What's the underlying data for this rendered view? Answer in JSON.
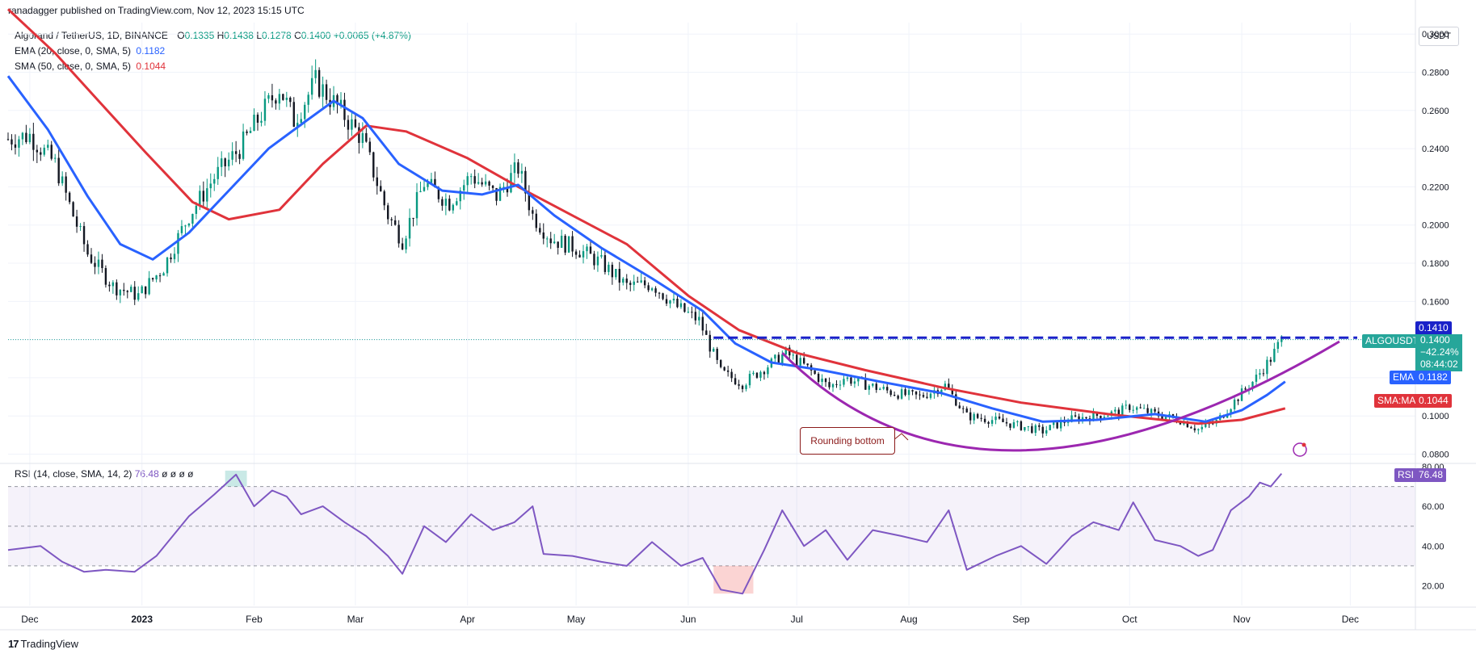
{
  "header": {
    "publisher": "ranadagger published on TradingView.com, Nov 12, 2023 15:15 UTC"
  },
  "legend": {
    "symbol": "Algorand / TetherUS, 1D, BINANCE",
    "o_label": "O",
    "o": "0.1335",
    "h_label": "H",
    "h": "0.1438",
    "l_label": "L",
    "l": "0.1278",
    "c_label": "C",
    "c": "0.1400",
    "change": "+0.0065 (+4.87%)",
    "ema_label": "EMA (20, close, 0, SMA, 5)",
    "ema_value": "0.1182",
    "sma_label": "SMA (50, close, 0, SMA, 5)",
    "sma_value": "0.1044"
  },
  "rsi_legend": {
    "label": "RSI (14, close, SMA, 14, 2)",
    "value": "76.48",
    "extras": "ø ø ø ø"
  },
  "axis": {
    "currency": "USDT"
  },
  "price_labels": {
    "resistance": "0.1410",
    "symbol": "ALGOUSDT",
    "last": "0.1400",
    "pct": "−42.24%",
    "countdown": "08:44:02",
    "ema_tag": "EMA",
    "ema_value": "0.1182",
    "sma_tag": "SMA:MA",
    "sma_value": "0.1044",
    "rsi_tag": "RSI",
    "rsi_value": "76.48"
  },
  "annotation": {
    "text": "Rounding bottom"
  },
  "footer": {
    "brand": "TradingView",
    "logo": "17"
  },
  "colors": {
    "up": "#089981",
    "down": "#131722",
    "ema": "#2962ff",
    "sma": "#e0333b",
    "rsi": "#7e57c2",
    "curve": "#9c27b0",
    "resistance": "#1a22c9",
    "annotation": "#8b1a1a"
  },
  "chart_data": [
    {
      "type": "candlestick",
      "title": "Algorand / TetherUS, 1D, BINANCE",
      "x_ticks": [
        "Dec",
        "2023",
        "Feb",
        "Mar",
        "Apr",
        "May",
        "Jun",
        "Jul",
        "Aug",
        "Sep",
        "Oct",
        "Nov",
        "Dec"
      ],
      "y_ticks": [
        "0.0800",
        "0.1000",
        "0.1200",
        "0.1400",
        "0.1600",
        "0.1800",
        "0.2000",
        "0.2200",
        "0.2400",
        "0.2600",
        "0.2800",
        "0.3000"
      ],
      "ylim": [
        0.076,
        0.306
      ],
      "close_path": [
        [
          "2022-11-25",
          0.245
        ],
        [
          "2022-12-01",
          0.247
        ],
        [
          "2022-12-08",
          0.232
        ],
        [
          "2022-12-13",
          0.205
        ],
        [
          "2022-12-17",
          0.185
        ],
        [
          "2022-12-24",
          0.168
        ],
        [
          "2022-12-31",
          0.163
        ],
        [
          "2023-01-07",
          0.178
        ],
        [
          "2023-01-14",
          0.205
        ],
        [
          "2023-01-21",
          0.225
        ],
        [
          "2023-01-28",
          0.24
        ],
        [
          "2023-02-03",
          0.258
        ],
        [
          "2023-02-08",
          0.272
        ],
        [
          "2023-02-12",
          0.255
        ],
        [
          "2023-02-18",
          0.275
        ],
        [
          "2023-02-24",
          0.262
        ],
        [
          "2023-03-03",
          0.245
        ],
        [
          "2023-03-10",
          0.205
        ],
        [
          "2023-03-14",
          0.192
        ],
        [
          "2023-03-20",
          0.222
        ],
        [
          "2023-03-27",
          0.212
        ],
        [
          "2023-04-02",
          0.226
        ],
        [
          "2023-04-09",
          0.215
        ],
        [
          "2023-04-15",
          0.23
        ],
        [
          "2023-04-19",
          0.205
        ],
        [
          "2023-04-24",
          0.193
        ],
        [
          "2023-05-01",
          0.188
        ],
        [
          "2023-05-08",
          0.18
        ],
        [
          "2023-05-15",
          0.168
        ],
        [
          "2023-05-22",
          0.169
        ],
        [
          "2023-05-29",
          0.157
        ],
        [
          "2023-06-04",
          0.15
        ],
        [
          "2023-06-10",
          0.123
        ],
        [
          "2023-06-16",
          0.117
        ],
        [
          "2023-06-22",
          0.125
        ],
        [
          "2023-06-28",
          0.133
        ],
        [
          "2023-07-04",
          0.125
        ],
        [
          "2023-07-10",
          0.115
        ],
        [
          "2023-07-14",
          0.12
        ],
        [
          "2023-07-21",
          0.116
        ],
        [
          "2023-07-28",
          0.112
        ],
        [
          "2023-08-04",
          0.11
        ],
        [
          "2023-08-11",
          0.116
        ],
        [
          "2023-08-17",
          0.1
        ],
        [
          "2023-08-24",
          0.098
        ],
        [
          "2023-08-31",
          0.095
        ],
        [
          "2023-09-07",
          0.092
        ],
        [
          "2023-09-14",
          0.098
        ],
        [
          "2023-09-21",
          0.1
        ],
        [
          "2023-09-28",
          0.102
        ],
        [
          "2023-10-01",
          0.105
        ],
        [
          "2023-10-08",
          0.101
        ],
        [
          "2023-10-15",
          0.098
        ],
        [
          "2023-10-20",
          0.093
        ],
        [
          "2023-10-25",
          0.097
        ],
        [
          "2023-11-01",
          0.112
        ],
        [
          "2023-11-05",
          0.12
        ],
        [
          "2023-11-09",
          0.13
        ],
        [
          "2023-11-12",
          0.14
        ]
      ],
      "ema20_path": [
        [
          "2022-11-25",
          0.278
        ],
        [
          "2022-12-06",
          0.25
        ],
        [
          "2022-12-17",
          0.215
        ],
        [
          "2022-12-26",
          0.19
        ],
        [
          "2023-01-04",
          0.182
        ],
        [
          "2023-01-14",
          0.196
        ],
        [
          "2023-01-25",
          0.218
        ],
        [
          "2023-02-05",
          0.24
        ],
        [
          "2023-02-15",
          0.254
        ],
        [
          "2023-02-23",
          0.265
        ],
        [
          "2023-03-03",
          0.256
        ],
        [
          "2023-03-13",
          0.232
        ],
        [
          "2023-03-25",
          0.218
        ],
        [
          "2023-04-05",
          0.216
        ],
        [
          "2023-04-15",
          0.221
        ],
        [
          "2023-04-25",
          0.205
        ],
        [
          "2023-05-08",
          0.188
        ],
        [
          "2023-05-22",
          0.172
        ],
        [
          "2023-06-05",
          0.155
        ],
        [
          "2023-06-14",
          0.138
        ],
        [
          "2023-06-24",
          0.128
        ],
        [
          "2023-07-08",
          0.124
        ],
        [
          "2023-07-24",
          0.118
        ],
        [
          "2023-08-10",
          0.112
        ],
        [
          "2023-08-24",
          0.104
        ],
        [
          "2023-09-07",
          0.097
        ],
        [
          "2023-09-22",
          0.098
        ],
        [
          "2023-10-08",
          0.101
        ],
        [
          "2023-10-22",
          0.097
        ],
        [
          "2023-11-01",
          0.103
        ],
        [
          "2023-11-08",
          0.111
        ],
        [
          "2023-11-13",
          0.118
        ]
      ],
      "sma50_path": [
        [
          "2022-11-25",
          0.313
        ],
        [
          "2022-12-08",
          0.29
        ],
        [
          "2022-12-20",
          0.265
        ],
        [
          "2023-01-02",
          0.238
        ],
        [
          "2023-01-15",
          0.212
        ],
        [
          "2023-01-25",
          0.203
        ],
        [
          "2023-02-08",
          0.208
        ],
        [
          "2023-02-20",
          0.232
        ],
        [
          "2023-03-04",
          0.252
        ],
        [
          "2023-03-15",
          0.249
        ],
        [
          "2023-04-01",
          0.235
        ],
        [
          "2023-04-15",
          0.22
        ],
        [
          "2023-04-30",
          0.205
        ],
        [
          "2023-05-15",
          0.19
        ],
        [
          "2023-06-01",
          0.163
        ],
        [
          "2023-06-15",
          0.145
        ],
        [
          "2023-07-01",
          0.133
        ],
        [
          "2023-07-20",
          0.124
        ],
        [
          "2023-08-10",
          0.115
        ],
        [
          "2023-09-01",
          0.107
        ],
        [
          "2023-09-25",
          0.101
        ],
        [
          "2023-10-20",
          0.096
        ],
        [
          "2023-11-01",
          0.098
        ],
        [
          "2023-11-13",
          0.104
        ]
      ],
      "resistance_level": 0.141,
      "annotations": [
        "Rounding bottom"
      ]
    },
    {
      "type": "line",
      "title": "RSI (14, close, SMA, 14, 2)",
      "y_ticks": [
        "20.00",
        "40.00",
        "60.00",
        "80.00"
      ],
      "ylim": [
        10,
        80
      ],
      "bands": [
        30,
        50,
        70
      ],
      "rsi_path": [
        [
          "2022-11-25",
          38
        ],
        [
          "2022-12-04",
          40
        ],
        [
          "2022-12-10",
          32
        ],
        [
          "2022-12-16",
          27
        ],
        [
          "2022-12-22",
          28
        ],
        [
          "2022-12-30",
          27
        ],
        [
          "2023-01-05",
          35
        ],
        [
          "2023-01-14",
          55
        ],
        [
          "2023-01-21",
          66
        ],
        [
          "2023-01-27",
          76
        ],
        [
          "2023-02-01",
          60
        ],
        [
          "2023-02-06",
          68
        ],
        [
          "2023-02-10",
          65
        ],
        [
          "2023-02-14",
          56
        ],
        [
          "2023-02-20",
          60
        ],
        [
          "2023-02-26",
          52
        ],
        [
          "2023-03-04",
          45
        ],
        [
          "2023-03-10",
          35
        ],
        [
          "2023-03-14",
          26
        ],
        [
          "2023-03-20",
          50
        ],
        [
          "2023-03-26",
          42
        ],
        [
          "2023-04-02",
          56
        ],
        [
          "2023-04-08",
          48
        ],
        [
          "2023-04-14",
          52
        ],
        [
          "2023-04-19",
          60
        ],
        [
          "2023-04-22",
          36
        ],
        [
          "2023-04-30",
          35
        ],
        [
          "2023-05-08",
          32
        ],
        [
          "2023-05-15",
          30
        ],
        [
          "2023-05-22",
          42
        ],
        [
          "2023-05-30",
          30
        ],
        [
          "2023-06-05",
          34
        ],
        [
          "2023-06-10",
          18
        ],
        [
          "2023-06-16",
          16
        ],
        [
          "2023-06-22",
          38
        ],
        [
          "2023-06-27",
          58
        ],
        [
          "2023-07-03",
          40
        ],
        [
          "2023-07-09",
          48
        ],
        [
          "2023-07-15",
          33
        ],
        [
          "2023-07-22",
          48
        ],
        [
          "2023-07-30",
          45
        ],
        [
          "2023-08-06",
          42
        ],
        [
          "2023-08-12",
          58
        ],
        [
          "2023-08-17",
          28
        ],
        [
          "2023-08-25",
          35
        ],
        [
          "2023-09-01",
          40
        ],
        [
          "2023-09-08",
          31
        ],
        [
          "2023-09-15",
          45
        ],
        [
          "2023-09-21",
          52
        ],
        [
          "2023-09-28",
          48
        ],
        [
          "2023-10-02",
          62
        ],
        [
          "2023-10-08",
          43
        ],
        [
          "2023-10-15",
          40
        ],
        [
          "2023-10-20",
          35
        ],
        [
          "2023-10-24",
          38
        ],
        [
          "2023-10-29",
          58
        ],
        [
          "2023-11-03",
          65
        ],
        [
          "2023-11-06",
          72
        ],
        [
          "2023-11-09",
          70
        ],
        [
          "2023-11-12",
          76.48
        ]
      ]
    }
  ]
}
